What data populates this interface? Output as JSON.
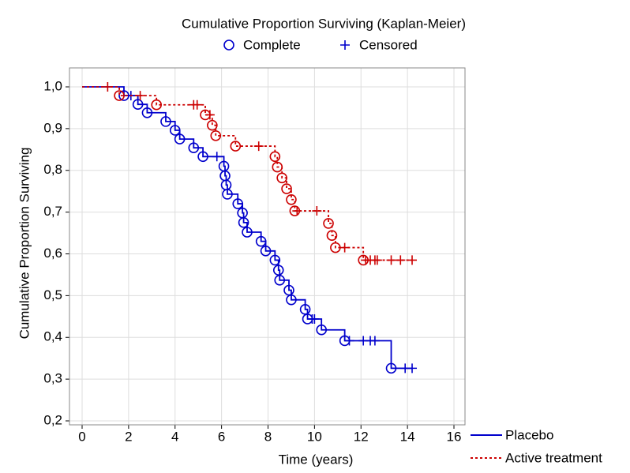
{
  "chart_data": {
    "type": "kaplan-meier",
    "title": "Cumulative Proportion Surviving (Kaplan-Meier)",
    "marker_legend": {
      "complete": "Complete",
      "censored": "Censored"
    },
    "x_label": "Time (years)",
    "y_label": "Cumulative Proportion Surviving",
    "xlim": [
      0,
      16
    ],
    "xticks": [
      0,
      2,
      4,
      6,
      8,
      10,
      12,
      14,
      16
    ],
    "ylim": [
      0.2,
      1.0
    ],
    "yticks": [
      {
        "value": 0.2,
        "label": "0,2"
      },
      {
        "value": 0.3,
        "label": "0,3"
      },
      {
        "value": 0.4,
        "label": "0,4"
      },
      {
        "value": 0.5,
        "label": "0,5"
      },
      {
        "value": 0.6,
        "label": "0,6"
      },
      {
        "value": 0.7,
        "label": "0,7"
      },
      {
        "value": 0.8,
        "label": "0,8"
      },
      {
        "value": 0.9,
        "label": "0,9"
      },
      {
        "value": 1.0,
        "label": "1,0"
      }
    ],
    "grid": true,
    "legend": "bottom-right",
    "series": [
      {
        "name": "Placebo",
        "color": "#0000cc",
        "dash": false,
        "x": [
          0,
          1.8,
          2.1,
          2.4,
          2.8,
          3.6,
          4.0,
          4.2,
          4.8,
          5.2,
          5.8,
          6.1,
          6.15,
          6.2,
          6.25,
          6.7,
          6.9,
          6.95,
          7.1,
          7.7,
          7.9,
          8.3,
          8.45,
          8.5,
          8.9,
          9.0,
          9.6,
          9.7,
          9.9,
          10.0,
          10.3,
          11.3,
          11.5,
          12.1,
          12.4,
          12.6,
          13.3,
          13.9,
          14.2
        ],
        "values": [
          1.0,
          0.979,
          0.979,
          0.958,
          0.938,
          0.917,
          0.896,
          0.875,
          0.854,
          0.833,
          0.833,
          0.81,
          0.787,
          0.765,
          0.743,
          0.72,
          0.698,
          0.675,
          0.652,
          0.63,
          0.607,
          0.585,
          0.561,
          0.537,
          0.513,
          0.49,
          0.467,
          0.444,
          0.444,
          0.444,
          0.418,
          0.392,
          0.392,
          0.392,
          0.392,
          0.392,
          0.326,
          0.326,
          0.326
        ],
        "markers": [
          null,
          "complete",
          "censored",
          "complete",
          "complete",
          "complete",
          "complete",
          "complete",
          "complete",
          "complete",
          "censored",
          "complete",
          "complete",
          "complete",
          "complete",
          "complete",
          "complete",
          "complete",
          "complete",
          "complete",
          "complete",
          "complete",
          "complete",
          "complete",
          "complete",
          "complete",
          "complete",
          "complete",
          "censored",
          "censored",
          "complete",
          "complete",
          "censored",
          "censored",
          "censored",
          "censored",
          "complete",
          "censored",
          "censored"
        ]
      },
      {
        "name": "Active treatment",
        "color": "#cc0000",
        "dash": true,
        "x": [
          0,
          1.1,
          1.6,
          2.5,
          3.2,
          4.8,
          4.95,
          5.3,
          5.5,
          5.6,
          5.75,
          6.6,
          7.6,
          8.3,
          8.4,
          8.6,
          8.8,
          9.0,
          9.15,
          9.25,
          10.1,
          10.6,
          10.75,
          10.9,
          11.3,
          12.1,
          12.2,
          12.4,
          12.6,
          12.7,
          13.3,
          13.7,
          14.2
        ],
        "values": [
          1.0,
          1.0,
          0.979,
          0.979,
          0.957,
          0.957,
          0.957,
          0.933,
          0.933,
          0.908,
          0.883,
          0.858,
          0.858,
          0.833,
          0.808,
          0.782,
          0.756,
          0.73,
          0.703,
          0.703,
          0.703,
          0.673,
          0.644,
          0.615,
          0.615,
          0.585,
          0.585,
          0.585,
          0.585,
          0.585,
          0.585,
          0.585,
          0.585
        ],
        "markers": [
          null,
          "censored",
          "complete",
          "censored",
          "complete",
          "censored",
          "censored",
          "complete",
          "censored",
          "complete",
          "complete",
          "complete",
          "censored",
          "complete",
          "complete",
          "complete",
          "complete",
          "complete",
          "complete",
          "censored",
          "censored",
          "complete",
          "complete",
          "complete",
          "censored",
          "complete",
          "censored",
          "censored",
          "censored",
          "censored",
          "censored",
          "censored",
          "censored"
        ]
      }
    ]
  }
}
